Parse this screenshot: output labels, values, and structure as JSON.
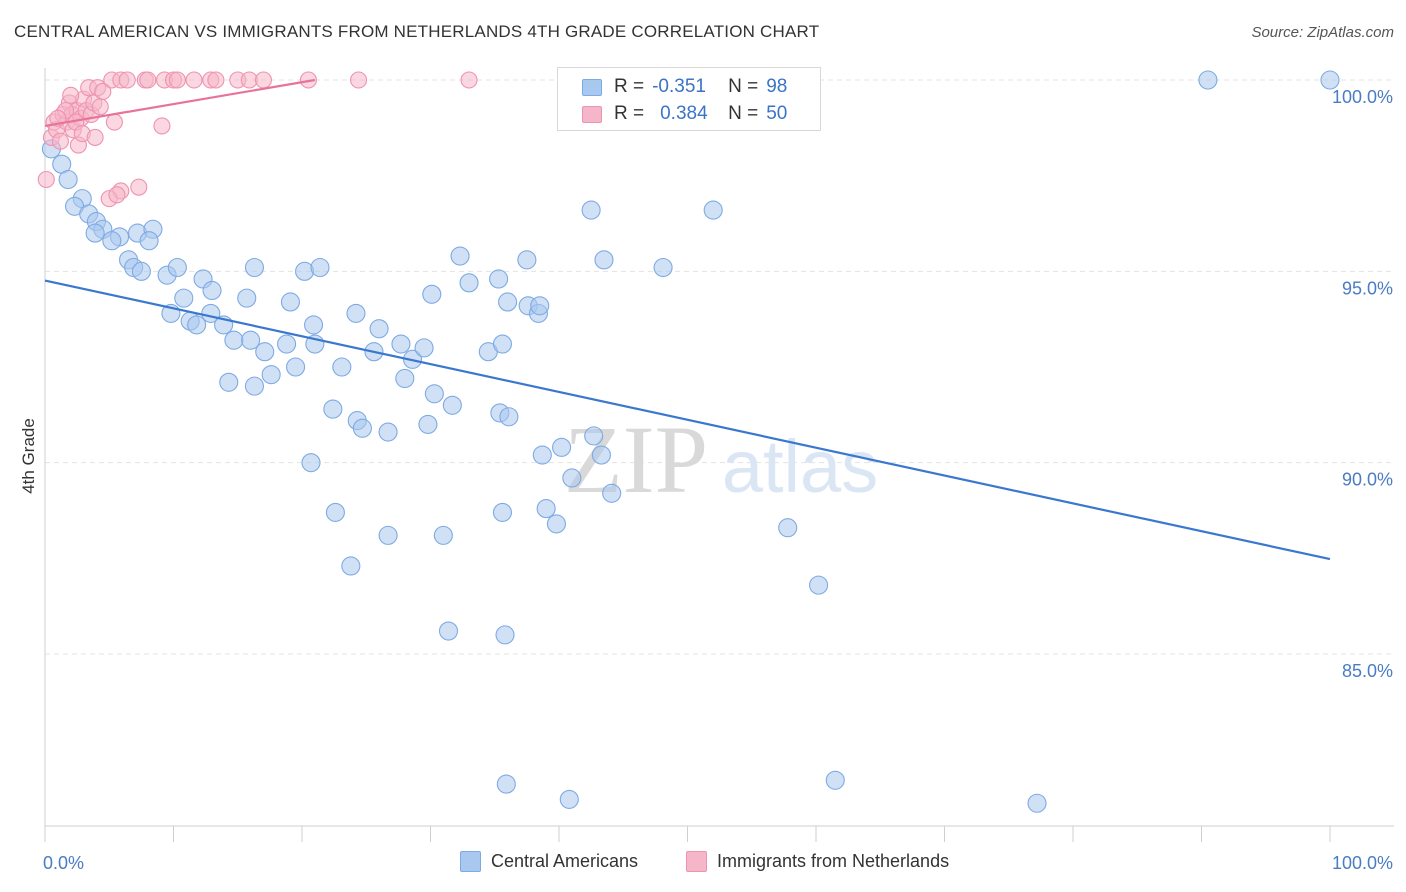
{
  "title": "CENTRAL AMERICAN VS IMMIGRANTS FROM NETHERLANDS 4TH GRADE CORRELATION CHART",
  "source": "Source: ZipAtlas.com",
  "watermark": {
    "zip": "ZIP",
    "atlas": "atlas"
  },
  "legend": {
    "row1": {
      "r_label": "R =",
      "r_value": "-0.351",
      "n_label": "N =",
      "n_value": "98"
    },
    "row2": {
      "r_label": "R =",
      "r_value": "0.384",
      "n_label": "N =",
      "n_value": "50"
    }
  },
  "bottom_legend": {
    "central": "Central Americans",
    "netherlands": "Immigrants from Netherlands"
  },
  "colors": {
    "blue_fill": "#a9c8ef",
    "blue_stroke": "#7eaae3",
    "blue_line": "#3a78d0",
    "pink_fill": "#f6b6c9",
    "pink_stroke": "#ee93b1",
    "pink_line": "#e8739a",
    "tick_text": "#4a7cc4",
    "grid": "#e3e3e3"
  },
  "chart_data": {
    "type": "scatter",
    "title": "CENTRAL AMERICAN VS IMMIGRANTS FROM NETHERLANDS 4TH GRADE CORRELATION CHART",
    "xlabel": "",
    "ylabel": "4th Grade",
    "xlim": [
      0,
      100
    ],
    "ylim": [
      80.5,
      100.3
    ],
    "x_tick_labels": {
      "min": "0.0%",
      "max": "100.0%"
    },
    "y_ticks": [
      {
        "value": 100,
        "label": "100.0%"
      },
      {
        "value": 95,
        "label": "95.0%"
      },
      {
        "value": 90,
        "label": "90.0%"
      },
      {
        "value": 85,
        "label": "85.0%"
      }
    ],
    "grid": true,
    "series": [
      {
        "name": "Central Americans",
        "R": -0.351,
        "N": 98,
        "trend": {
          "x0": 0,
          "y0": 94.76,
          "x1": 100,
          "y1": 87.48
        },
        "points": [
          [
            0.5,
            98.2
          ],
          [
            1.3,
            97.8
          ],
          [
            1.8,
            97.4
          ],
          [
            2.9,
            96.9
          ],
          [
            2.3,
            96.7
          ],
          [
            3.4,
            96.5
          ],
          [
            4.0,
            96.3
          ],
          [
            4.5,
            96.1
          ],
          [
            3.9,
            96.0
          ],
          [
            5.8,
            95.9
          ],
          [
            7.2,
            96.0
          ],
          [
            8.4,
            96.1
          ],
          [
            5.2,
            95.8
          ],
          [
            8.1,
            95.8
          ],
          [
            6.5,
            95.3
          ],
          [
            6.9,
            95.1
          ],
          [
            7.5,
            95.0
          ],
          [
            9.5,
            94.9
          ],
          [
            10.3,
            95.1
          ],
          [
            12.3,
            94.8
          ],
          [
            16.3,
            95.1
          ],
          [
            20.2,
            95.0
          ],
          [
            21.4,
            95.1
          ],
          [
            10.8,
            94.3
          ],
          [
            13.0,
            94.5
          ],
          [
            15.7,
            94.3
          ],
          [
            19.1,
            94.2
          ],
          [
            30.1,
            94.4
          ],
          [
            33.0,
            94.7
          ],
          [
            32.3,
            95.4
          ],
          [
            35.3,
            94.8
          ],
          [
            37.5,
            95.3
          ],
          [
            9.8,
            93.9
          ],
          [
            11.3,
            93.7
          ],
          [
            11.8,
            93.6
          ],
          [
            12.9,
            93.9
          ],
          [
            13.9,
            93.6
          ],
          [
            14.7,
            93.2
          ],
          [
            16.0,
            93.2
          ],
          [
            18.8,
            93.1
          ],
          [
            21.0,
            93.1
          ],
          [
            20.9,
            93.6
          ],
          [
            24.2,
            93.9
          ],
          [
            26.0,
            93.5
          ],
          [
            27.7,
            93.1
          ],
          [
            28.6,
            92.7
          ],
          [
            29.5,
            93.0
          ],
          [
            25.6,
            92.9
          ],
          [
            17.1,
            92.9
          ],
          [
            23.1,
            92.5
          ],
          [
            17.6,
            92.3
          ],
          [
            19.5,
            92.5
          ],
          [
            14.3,
            92.1
          ],
          [
            16.3,
            92.0
          ],
          [
            28.0,
            92.2
          ],
          [
            30.3,
            91.8
          ],
          [
            31.7,
            91.5
          ],
          [
            34.5,
            92.9
          ],
          [
            35.6,
            93.1
          ],
          [
            36.0,
            94.2
          ],
          [
            37.6,
            94.1
          ],
          [
            38.4,
            93.9
          ],
          [
            38.5,
            94.1
          ],
          [
            22.4,
            91.4
          ],
          [
            24.3,
            91.1
          ],
          [
            24.7,
            90.9
          ],
          [
            26.7,
            90.8
          ],
          [
            29.8,
            91.0
          ],
          [
            35.4,
            91.3
          ],
          [
            36.1,
            91.2
          ],
          [
            38.7,
            90.2
          ],
          [
            40.2,
            90.4
          ],
          [
            42.7,
            90.7
          ],
          [
            43.3,
            90.2
          ],
          [
            44.1,
            89.2
          ],
          [
            41.0,
            89.6
          ],
          [
            20.7,
            90.0
          ],
          [
            22.6,
            88.7
          ],
          [
            26.7,
            88.1
          ],
          [
            31.0,
            88.1
          ],
          [
            35.6,
            88.7
          ],
          [
            39.0,
            88.8
          ],
          [
            39.8,
            88.4
          ],
          [
            23.8,
            87.3
          ],
          [
            31.4,
            85.6
          ],
          [
            35.8,
            85.5
          ],
          [
            57.8,
            88.3
          ],
          [
            60.2,
            86.8
          ],
          [
            43.5,
            95.3
          ],
          [
            48.1,
            95.1
          ],
          [
            42.5,
            96.6
          ],
          [
            52.0,
            96.6
          ],
          [
            35.9,
            81.6
          ],
          [
            40.8,
            81.2
          ],
          [
            61.5,
            81.7
          ],
          [
            77.2,
            81.1
          ],
          [
            90.5,
            100.0
          ],
          [
            100.0,
            100.0
          ]
        ]
      },
      {
        "name": "Immigrants from Netherlands",
        "R": 0.384,
        "N": 50,
        "trend": {
          "x0": 0,
          "y0": 98.8,
          "x1": 21.0,
          "y1": 100.0
        },
        "points": [
          [
            0.1,
            97.4
          ],
          [
            0.5,
            98.5
          ],
          [
            0.7,
            98.9
          ],
          [
            0.9,
            98.7
          ],
          [
            1.2,
            98.4
          ],
          [
            1.4,
            99.1
          ],
          [
            1.7,
            98.9
          ],
          [
            1.9,
            99.4
          ],
          [
            2.1,
            99.1
          ],
          [
            2.2,
            98.7
          ],
          [
            2.5,
            99.2
          ],
          [
            2.6,
            98.3
          ],
          [
            2.8,
            99.0
          ],
          [
            3.0,
            99.5
          ],
          [
            3.2,
            99.2
          ],
          [
            3.4,
            99.8
          ],
          [
            3.6,
            99.1
          ],
          [
            3.8,
            99.4
          ],
          [
            4.1,
            99.8
          ],
          [
            4.3,
            99.3
          ],
          [
            4.5,
            99.7
          ],
          [
            2.0,
            99.6
          ],
          [
            1.6,
            99.2
          ],
          [
            1.0,
            99.0
          ],
          [
            2.4,
            98.9
          ],
          [
            2.9,
            98.6
          ],
          [
            3.9,
            98.5
          ],
          [
            5.4,
            98.9
          ],
          [
            9.1,
            98.8
          ],
          [
            7.3,
            97.2
          ],
          [
            5.9,
            97.1
          ],
          [
            5.0,
            96.9
          ],
          [
            5.6,
            97.0
          ],
          [
            5.2,
            100.0
          ],
          [
            5.9,
            100.0
          ],
          [
            6.4,
            100.0
          ],
          [
            7.8,
            100.0
          ],
          [
            8.0,
            100.0
          ],
          [
            9.3,
            100.0
          ],
          [
            10.0,
            100.0
          ],
          [
            10.3,
            100.0
          ],
          [
            11.6,
            100.0
          ],
          [
            12.9,
            100.0
          ],
          [
            13.3,
            100.0
          ],
          [
            15.0,
            100.0
          ],
          [
            15.9,
            100.0
          ],
          [
            17.0,
            100.0
          ],
          [
            20.5,
            100.0
          ],
          [
            24.4,
            100.0
          ],
          [
            33.0,
            100.0
          ]
        ]
      }
    ]
  }
}
